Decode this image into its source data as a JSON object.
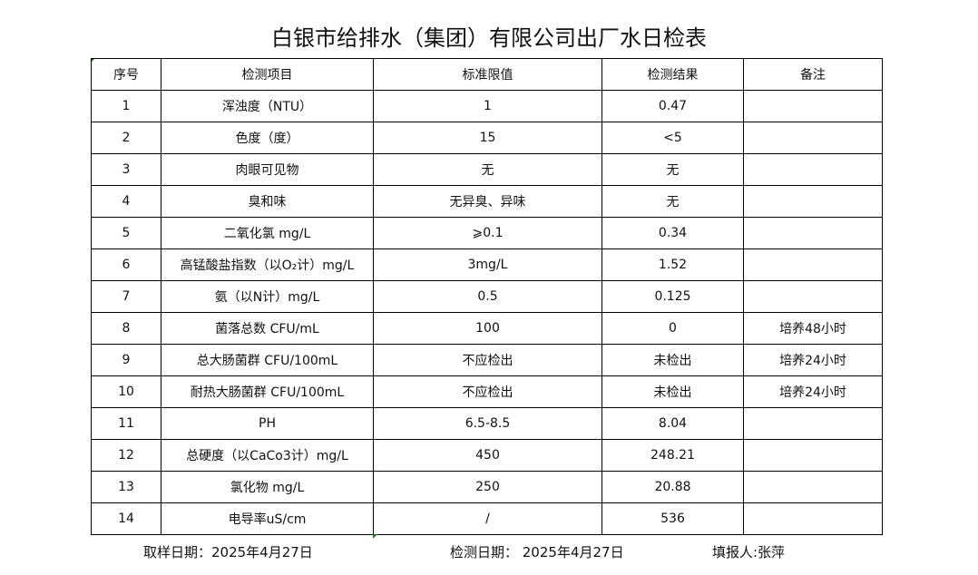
{
  "title": "白银市给排水（集团）有限公司出厂水日检表",
  "headers": [
    "序号",
    "检测项目",
    "标准限值",
    "检测结果",
    "备注"
  ],
  "rows": [
    [
      "1",
      "浑浊度（NTU）",
      "1",
      "0.47",
      ""
    ],
    [
      "2",
      "色度（度）",
      "15",
      "<5",
      ""
    ],
    [
      "3",
      "肉眼可见物",
      "无",
      "无",
      ""
    ],
    [
      "4",
      "臭和味",
      "无异臭、异味",
      "无",
      ""
    ],
    [
      "5",
      "二氧化氯 mg/L",
      "⩾0.1",
      "0.34",
      ""
    ],
    [
      "6",
      "高锰酸盐指数（以O₂计）mg/L",
      "3mg/L",
      "1.52",
      ""
    ],
    [
      "7",
      "氨（以N计）mg/L",
      "0.5",
      "0.125",
      ""
    ],
    [
      "8",
      "菌落总数 CFU/mL",
      "100",
      "0",
      "培养48小时"
    ],
    [
      "9",
      "总大肠菌群 CFU/100mL",
      "不应检出",
      "未检出",
      "培养24小时"
    ],
    [
      "10",
      "耐热大肠菌群 CFU/100mL",
      "不应检出",
      "未检出",
      "培养24小时"
    ],
    [
      "11",
      "PH",
      "6.5-8.5",
      "8.04",
      ""
    ],
    [
      "12",
      "总硬度（以CaCo3计）mg/L",
      "450",
      "248.21",
      ""
    ],
    [
      "13",
      "氯化物 mg/L",
      "250",
      "20.88",
      ""
    ],
    [
      "14",
      "电导率uS/cm",
      "/",
      "536",
      ""
    ]
  ],
  "footer": {
    "sample_date": "取样日期：2025年4月27日",
    "test_date": "检测日期： 2025年4月27日",
    "reporter": "填报人:张萍"
  }
}
